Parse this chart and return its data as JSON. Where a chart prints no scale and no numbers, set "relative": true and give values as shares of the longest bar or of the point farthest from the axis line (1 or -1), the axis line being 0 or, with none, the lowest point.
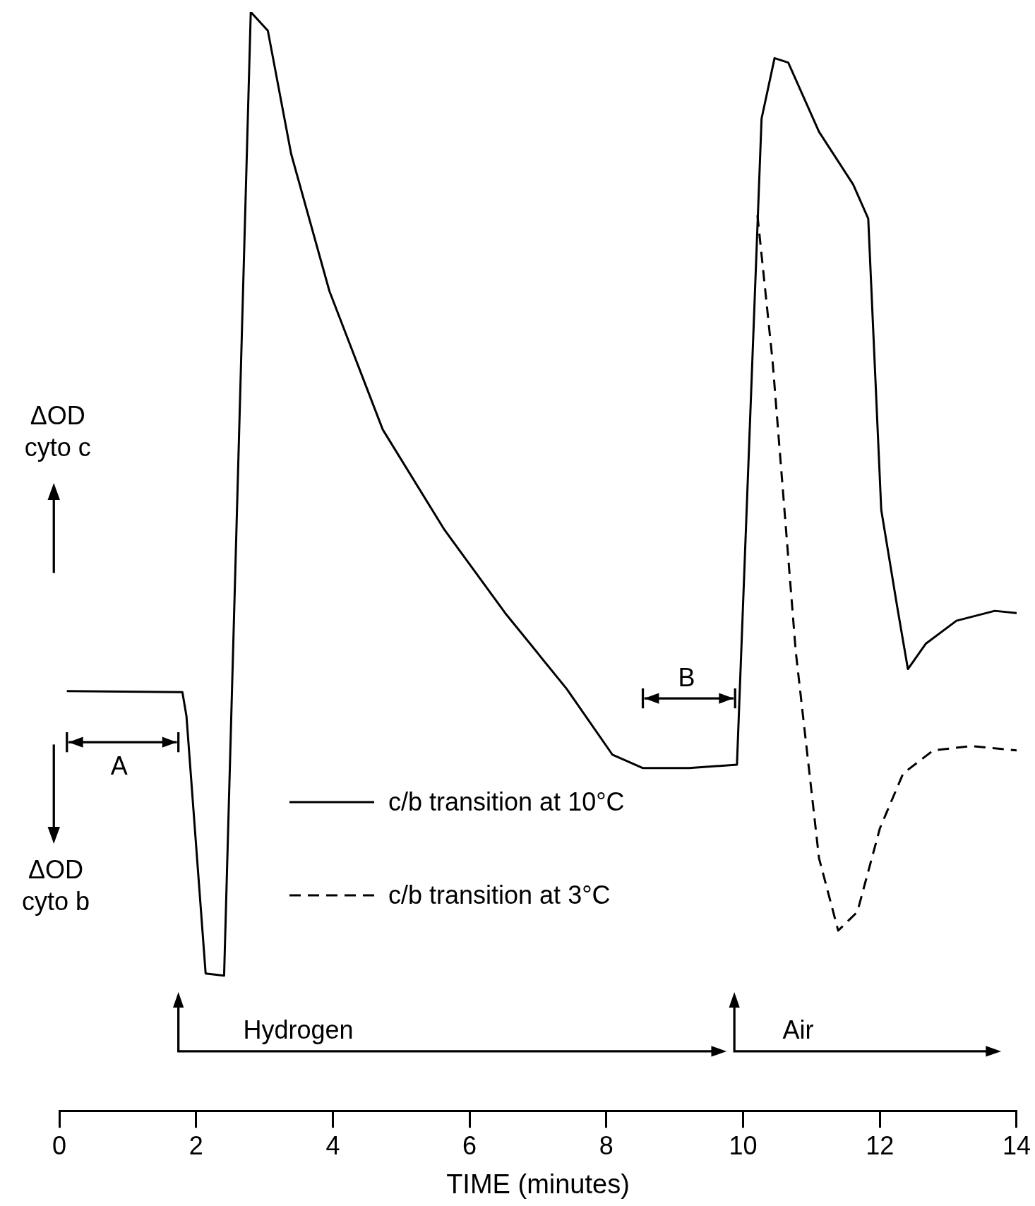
{
  "chart_data": {
    "type": "line",
    "relative": true,
    "xlabel": "TIME (minutes)",
    "xlim": [
      0,
      14
    ],
    "xticks": [
      0,
      2,
      4,
      6,
      8,
      10,
      12,
      14
    ],
    "tick_labels": "x",
    "grid": false,
    "marker": "none",
    "legend": "bottom",
    "series": [
      {
        "name": "c/b transition at 10°C",
        "color": "#000000",
        "line_style": "solid",
        "x": [
          0.11,
          1.8,
          1.86,
          2.14,
          2.41,
          2.8,
          3.05,
          3.39,
          3.95,
          4.73,
          5.63,
          6.52,
          7.42,
          8.09,
          8.53,
          9.21,
          9.91,
          10.27,
          10.46,
          10.66,
          11.11,
          11.61,
          11.83,
          12.02,
          12.25,
          12.41,
          12.67,
          13.12,
          13.68,
          14.0
        ],
        "values": [
          0.382,
          0.381,
          0.359,
          0.125,
          0.123,
          1,
          0.983,
          0.871,
          0.746,
          0.62,
          0.529,
          0.453,
          0.384,
          0.324,
          0.312,
          0.312,
          0.315,
          0.903,
          0.958,
          0.954,
          0.891,
          0.843,
          0.812,
          0.547,
          0.46,
          0.402,
          0.425,
          0.446,
          0.455,
          0.453
        ]
      },
      {
        "name": "c/b transition at 3°C",
        "color": "#000000",
        "line_style": "dashed",
        "x": [
          10.21,
          10.43,
          10.77,
          11.11,
          11.39,
          11.67,
          12.0,
          12.34,
          12.78,
          13.34,
          14.0
        ],
        "values": [
          0.815,
          0.683,
          0.418,
          0.23,
          0.164,
          0.181,
          0.257,
          0.307,
          0.328,
          0.332,
          0.328
        ]
      }
    ],
    "annotations": [
      "ΔOD cyto c",
      "ΔOD cyto b",
      "A",
      "B",
      "Hydrogen",
      "Air"
    ]
  }
}
